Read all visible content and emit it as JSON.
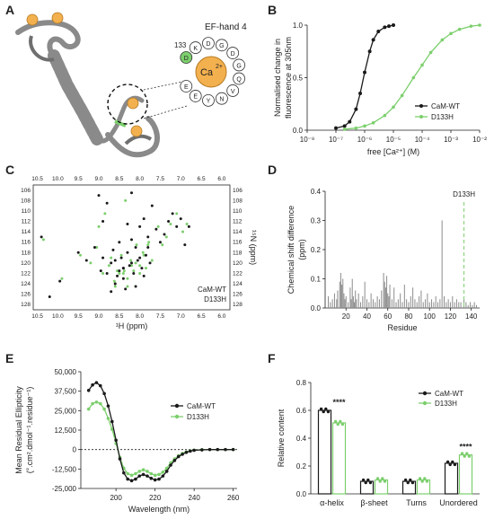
{
  "panels": {
    "A": {
      "label": "A",
      "title": "EF-hand 4",
      "residue": "133",
      "ion": "Ca",
      "ion_charge": "2+",
      "loop_letters": [
        "D",
        "K",
        "D",
        "G",
        "D",
        "G",
        "Q",
        "V",
        "N",
        "Y",
        "E",
        "E"
      ]
    },
    "B": {
      "label": "B"
    },
    "C": {
      "label": "C"
    },
    "D": {
      "label": "D"
    },
    "E": {
      "label": "E"
    },
    "F": {
      "label": "F"
    }
  },
  "colors": {
    "wt": "#1a1a1a",
    "mut": "#7ccf6d",
    "bar": "#8c8c8c",
    "protein": "#8a8a8a",
    "calcium": "#f3b04e"
  },
  "chart_data": [
    {
      "panel": "B",
      "type": "line",
      "xlabel": "free [Ca²⁺] (M)",
      "ylabel_lines": [
        "Normalised change in",
        "fluorescence at 305nm"
      ],
      "x_scale": "log",
      "xlim": [
        1e-08,
        0.01
      ],
      "ylim": [
        0,
        1
      ],
      "xticks": [
        "10⁻⁸",
        "10⁻⁷",
        "10⁻⁶",
        "10⁻⁵",
        "10⁻⁴",
        "10⁻³",
        "10⁻²"
      ],
      "yticks": [
        "0.0",
        "0.5",
        "1.0"
      ],
      "legend_position": "bottom-right",
      "series": [
        {
          "name": "CaM-WT",
          "x": [
            1e-07,
            2e-07,
            3e-07,
            5e-07,
            7e-07,
            1e-06,
            1.5e-06,
            2e-06,
            3e-06,
            5e-06,
            7e-06,
            1e-05
          ],
          "y": [
            0.02,
            0.04,
            0.08,
            0.2,
            0.35,
            0.55,
            0.75,
            0.86,
            0.94,
            0.98,
            0.99,
            1.0
          ]
        },
        {
          "name": "D133H",
          "x": [
            2e-07,
            5e-07,
            1e-06,
            2e-06,
            5e-06,
            1e-05,
            2e-05,
            5e-05,
            0.0001,
            0.0002,
            0.0005,
            0.001,
            0.002,
            0.005,
            0.01
          ],
          "y": [
            0.01,
            0.02,
            0.04,
            0.07,
            0.14,
            0.22,
            0.33,
            0.5,
            0.62,
            0.74,
            0.86,
            0.92,
            0.96,
            0.99,
            1.0
          ]
        }
      ]
    },
    {
      "panel": "C",
      "type": "scatter",
      "xlabel": "¹H (ppm)",
      "ylabel": "¹⁵N (ppm)",
      "xlim": [
        10.6,
        5.8
      ],
      "ylim": [
        105,
        129
      ],
      "xticks": [
        "10.5",
        "10.0",
        "9.5",
        "9.0",
        "8.5",
        "8.0",
        "7.5",
        "7.0",
        "6.5",
        "6.0"
      ],
      "yticks": [
        "106",
        "108",
        "110",
        "112",
        "114",
        "116",
        "118",
        "120",
        "122",
        "124",
        "126",
        "128"
      ],
      "legend_position": "bottom-right",
      "series": [
        {
          "name": "CaM-WT",
          "x": [
            10.4,
            10.2,
            9.95,
            9.5,
            9.3,
            9.1,
            8.95,
            8.9,
            8.8,
            8.7,
            8.65,
            8.6,
            8.55,
            8.5,
            8.45,
            8.4,
            8.35,
            8.3,
            8.25,
            8.2,
            8.15,
            8.1,
            8.05,
            8.0,
            7.95,
            7.9,
            7.85,
            7.8,
            7.75,
            7.7,
            7.6,
            7.5,
            7.4,
            7.3,
            7.2,
            7.1,
            7.0,
            6.9,
            6.8,
            8.6,
            8.4,
            8.2,
            8.0,
            7.8,
            8.7,
            8.5,
            8.3,
            8.1,
            7.9,
            8.9,
            9.0,
            8.8,
            8.2,
            8.4
          ],
          "y": [
            115,
            126.5,
            123.5,
            118,
            119.5,
            117,
            121.5,
            119,
            122,
            120,
            117.5,
            124,
            122.5,
            116,
            119,
            121,
            125,
            118,
            120.5,
            115.5,
            122,
            117,
            119.5,
            113,
            121,
            111.5,
            118.5,
            115,
            120,
            109,
            113.5,
            116,
            114.5,
            112,
            110.5,
            113,
            111.5,
            116.5,
            113,
            119.5,
            123,
            120,
            119,
            117,
            125.5,
            121.5,
            112.5,
            124.5,
            122.5,
            112,
            107,
            108.5,
            106.5,
            121
          ]
        },
        {
          "name": "D133H",
          "x": [
            10.35,
            9.9,
            9.45,
            9.2,
            9.05,
            8.9,
            8.75,
            8.62,
            8.55,
            8.45,
            8.38,
            8.3,
            8.22,
            8.15,
            8.08,
            8.0,
            7.92,
            7.85,
            7.78,
            7.7,
            7.55,
            7.45,
            7.35,
            7.25,
            7.1,
            6.95,
            6.85,
            8.7,
            8.5,
            8.3,
            8.1,
            7.9,
            8.6,
            8.4,
            8.2,
            8.0,
            7.8,
            9.0,
            8.85,
            8.35
          ],
          "y": [
            115.5,
            123,
            118.5,
            120,
            117,
            122,
            120.5,
            123.5,
            121.5,
            118.5,
            121.5,
            124.5,
            119.5,
            121.5,
            116.5,
            120.5,
            118,
            121,
            116,
            119.5,
            113,
            116.5,
            115,
            112.5,
            110.5,
            114,
            112.5,
            119,
            122,
            123,
            120,
            118.5,
            124.5,
            122,
            120.5,
            122,
            116.5,
            113,
            110.5,
            108
          ]
        }
      ]
    },
    {
      "panel": "D",
      "type": "bar",
      "xlabel": "Residue",
      "ylabel_lines": [
        "Chemical shift difference",
        "(ppm)"
      ],
      "xlim": [
        0,
        148
      ],
      "ylim": [
        0,
        0.4
      ],
      "xticks": [
        "20",
        "40",
        "60",
        "80",
        "100",
        "120",
        "140"
      ],
      "yticks": [
        "0.0",
        "0.1",
        "0.2",
        "0.3",
        "0.4"
      ],
      "annotation": "D133H",
      "annotation_x": 133,
      "x": [
        3,
        5,
        7,
        9,
        11,
        12,
        14,
        15,
        16,
        17,
        18,
        19,
        20,
        22,
        24,
        25,
        26,
        27,
        28,
        29,
        30,
        32,
        34,
        36,
        38,
        40,
        42,
        44,
        46,
        48,
        50,
        52,
        54,
        56,
        57,
        58,
        59,
        60,
        61,
        62,
        64,
        66,
        68,
        70,
        72,
        74,
        76,
        78,
        80,
        82,
        84,
        86,
        88,
        90,
        92,
        94,
        96,
        98,
        100,
        102,
        104,
        106,
        108,
        110,
        112,
        114,
        116,
        118,
        120,
        122,
        124,
        126,
        128,
        130,
        133,
        135,
        137,
        139,
        141,
        143,
        145
      ],
      "values": [
        0.04,
        0.02,
        0.03,
        0.05,
        0.03,
        0.06,
        0.09,
        0.12,
        0.08,
        0.1,
        0.05,
        0.03,
        0.04,
        0.02,
        0.07,
        0.03,
        0.1,
        0.04,
        0.02,
        0.06,
        0.03,
        0.05,
        0.02,
        0.04,
        0.09,
        0.03,
        0.02,
        0.05,
        0.03,
        0.02,
        0.04,
        0.03,
        0.06,
        0.12,
        0.09,
        0.07,
        0.11,
        0.05,
        0.04,
        0.08,
        0.03,
        0.07,
        0.02,
        0.03,
        0.05,
        0.02,
        0.08,
        0.03,
        0.02,
        0.04,
        0.07,
        0.03,
        0.02,
        0.04,
        0.06,
        0.02,
        0.03,
        0.05,
        0.02,
        0.03,
        0.02,
        0.04,
        0.02,
        0.03,
        0.3,
        0.04,
        0.02,
        0.03,
        0.02,
        0.04,
        0.02,
        0.03,
        0.02,
        0.02,
        0.03,
        0.02,
        0.01,
        0.02,
        0.01,
        0.02,
        0.01
      ]
    },
    {
      "panel": "E",
      "type": "line",
      "xlabel": "Wavelength (nm)",
      "ylabel_lines": [
        "Mean Residual Ellipticity",
        "(°.cm².dmol⁻¹.residue⁻¹)"
      ],
      "xlim": [
        182,
        262
      ],
      "ylim": [
        -25000,
        50000
      ],
      "xticks": [
        "200",
        "220",
        "240",
        "260"
      ],
      "yticks": [
        "-25,000",
        "-12,500",
        "0",
        "12,500",
        "25,000",
        "37,500",
        "50,000"
      ],
      "legend_position": "right",
      "series": [
        {
          "name": "CaM-WT",
          "x": [
            186,
            188,
            190,
            192,
            194,
            196,
            198,
            200,
            202,
            204,
            206,
            208,
            210,
            212,
            214,
            216,
            218,
            220,
            222,
            224,
            226,
            228,
            230,
            232,
            234,
            236,
            238,
            240,
            244,
            248,
            252,
            256,
            260
          ],
          "y": [
            38000,
            41500,
            43000,
            41000,
            36000,
            28000,
            18000,
            6000,
            -6000,
            -15000,
            -19000,
            -20000,
            -19000,
            -17000,
            -16000,
            -17000,
            -18500,
            -19500,
            -19000,
            -17000,
            -14000,
            -10000,
            -7000,
            -4500,
            -3000,
            -1800,
            -1000,
            -500,
            -200,
            0,
            0,
            0,
            0
          ]
        },
        {
          "name": "D133H",
          "x": [
            186,
            188,
            190,
            192,
            194,
            196,
            198,
            200,
            202,
            204,
            206,
            208,
            210,
            212,
            214,
            216,
            218,
            220,
            222,
            224,
            226,
            228,
            230,
            232,
            234,
            236,
            238,
            240,
            244,
            248,
            252,
            256,
            260
          ],
          "y": [
            26000,
            29500,
            30500,
            29500,
            26000,
            20000,
            13000,
            4000,
            -5000,
            -12000,
            -15500,
            -16500,
            -15500,
            -14000,
            -13000,
            -14000,
            -15500,
            -16500,
            -16000,
            -14500,
            -12000,
            -8500,
            -6000,
            -4000,
            -2500,
            -1500,
            -800,
            -400,
            -100,
            0,
            0,
            0,
            0
          ]
        }
      ]
    },
    {
      "panel": "F",
      "type": "bar",
      "ylabel": "Relative content",
      "categories": [
        "α-helix",
        "β-sheet",
        "Turns",
        "Unordered"
      ],
      "ylim": [
        0,
        0.8
      ],
      "yticks": [
        "0.0",
        "0.2",
        "0.4",
        "0.6",
        "0.8"
      ],
      "legend_position": "top-right",
      "significance": [
        "****",
        "",
        "",
        "****"
      ],
      "series": [
        {
          "name": "CaM-WT",
          "values": [
            0.6,
            0.09,
            0.09,
            0.22
          ]
        },
        {
          "name": "D133H",
          "values": [
            0.51,
            0.1,
            0.1,
            0.28
          ]
        }
      ]
    }
  ]
}
